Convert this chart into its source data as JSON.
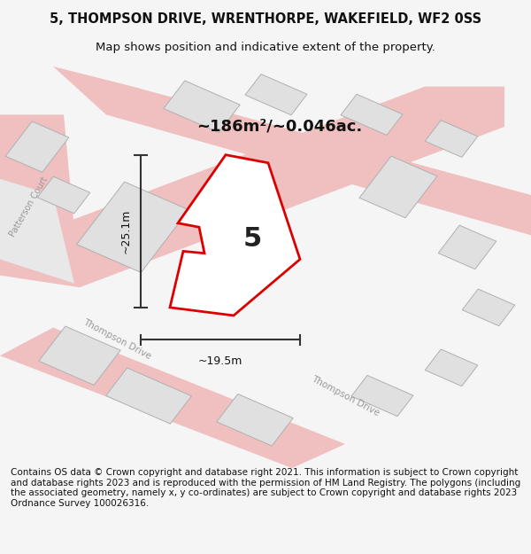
{
  "title_line1": "5, THOMPSON DRIVE, WRENTHORPE, WAKEFIELD, WF2 0SS",
  "title_line2": "Map shows position and indicative extent of the property.",
  "area_label": "~186m²/~0.046ac.",
  "plot_number": "5",
  "dim_height": "~25.1m",
  "dim_width": "~19.5m",
  "footer_text": "Contains OS data © Crown copyright and database right 2021. This information is subject to Crown copyright and database rights 2023 and is reproduced with the permission of HM Land Registry. The polygons (including the associated geometry, namely x, y co-ordinates) are subject to Crown copyright and database rights 2023 Ordnance Survey 100026316.",
  "bg_color": "#f5f5f5",
  "map_bg": "#ffffff",
  "road_color_light": "#f0c0c0",
  "road_color_dark": "#d0d0d0",
  "building_fill": "#e0e0e0",
  "building_edge": "#b0b0b0",
  "plot_outline_color": "#dd0000",
  "plot_fill": "#ffffff",
  "dim_line_color": "#333333",
  "street_label_color": "#888888",
  "title_fontsize": 10.5,
  "subtitle_fontsize": 9.5,
  "footer_fontsize": 7.5
}
